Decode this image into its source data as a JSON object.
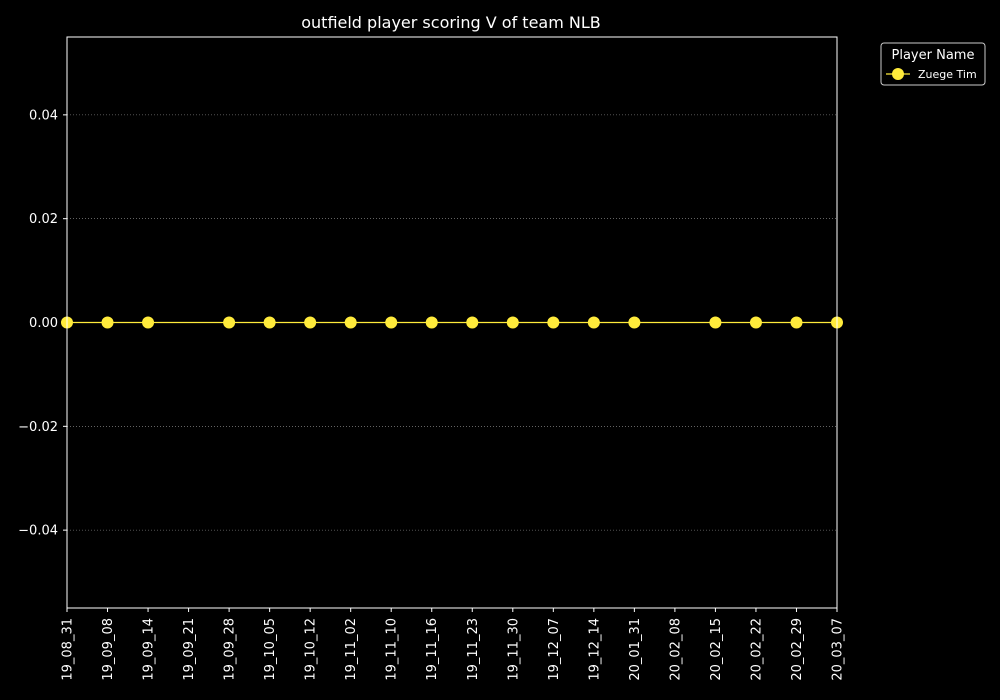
{
  "chart_data": {
    "type": "line",
    "title": "outfield player scoring V of team NLB",
    "xlabel": "",
    "ylabel": "",
    "categories": [
      "19_08_31",
      "19_09_08",
      "19_09_14",
      "19_09_21",
      "19_09_28",
      "19_10_05",
      "19_10_12",
      "19_11_02",
      "19_11_10",
      "19_11_16",
      "19_11_23",
      "19_11_30",
      "19_12_07",
      "19_12_14",
      "20_01_31",
      "20_02_08",
      "20_02_15",
      "20_02_22",
      "20_02_29",
      "20_03_07"
    ],
    "ylim": [
      -0.055,
      0.055
    ],
    "yticks": [
      "0.04",
      "0.02",
      "0.00",
      "−0.02",
      "−0.04"
    ],
    "ytick_values": [
      0.04,
      0.02,
      0.0,
      -0.02,
      -0.04
    ],
    "grid": "y-dotted",
    "legend_position": "outside-top-right",
    "legend_title": "Player Name",
    "series": [
      {
        "name": "Zuege Tim",
        "color": "#ffeb3b",
        "values": [
          0,
          0,
          0,
          null,
          0,
          0,
          0,
          0,
          0,
          0,
          0,
          0,
          0,
          0,
          0,
          null,
          0,
          0,
          0,
          0
        ]
      }
    ]
  }
}
